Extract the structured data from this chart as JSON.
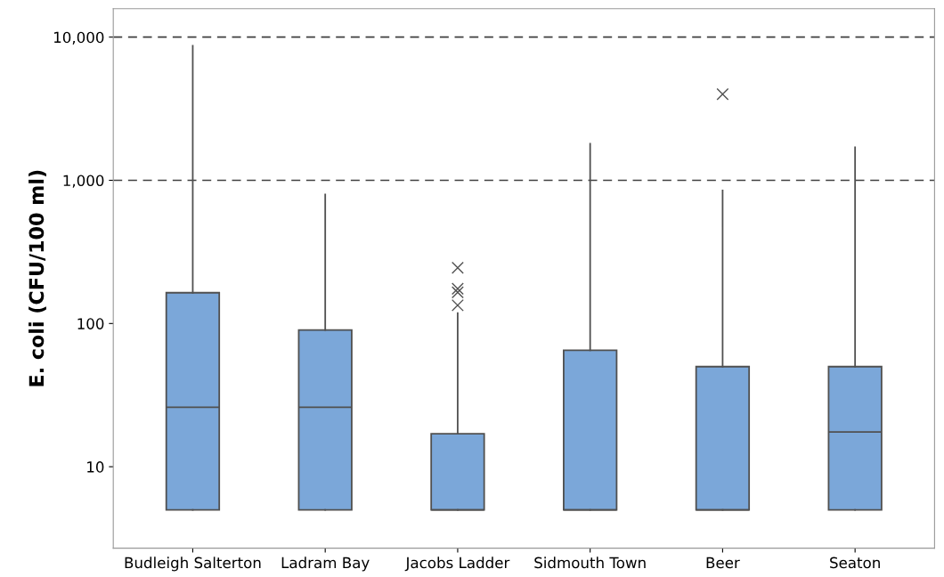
{
  "chart_data": {
    "type": "box",
    "ylabel": "E. coli (CFU/100 ml)",
    "log": "y",
    "categories": [
      "Budleigh Salterton",
      "Ladram Bay",
      "Jacobs Ladder",
      "Sidmouth Town",
      "Beer",
      "Seaton"
    ],
    "color": "#7ba7d9",
    "boxes": [
      {
        "low": 5,
        "q1": 5,
        "median": 26,
        "q3": 164,
        "high": 8700
      },
      {
        "low": 5,
        "q1": 5,
        "median": 26,
        "q3": 90,
        "high": 795
      },
      {
        "low": 5,
        "q1": 5,
        "median": 5,
        "q3": 17,
        "high": 118,
        "outliers": [
          245,
          175,
          165,
          134
        ]
      },
      {
        "low": 5,
        "q1": 5,
        "median": 5,
        "q3": 65,
        "high": 1800
      },
      {
        "low": 5,
        "q1": 5,
        "median": 5,
        "q3": 50,
        "high": 850,
        "outliers": [
          4000
        ]
      },
      {
        "low": 5,
        "q1": 5,
        "median": 17.5,
        "q3": 50,
        "high": 1700
      }
    ],
    "ylim": [
      2.7,
      15800
    ],
    "yticks": [
      {
        "value": 10,
        "label": "10"
      },
      {
        "value": 100,
        "label": "100"
      },
      {
        "value": 1000,
        "label": "1,000"
      },
      {
        "value": 10000,
        "label": "10,000"
      }
    ],
    "ref_lines": [
      {
        "axis": "y",
        "value": 1000,
        "line_style": "dashed",
        "color": "#404040"
      },
      {
        "axis": "y",
        "value": 10000,
        "line_style": "dashed",
        "color": "#404040"
      }
    ],
    "grid": false,
    "marker": "cross"
  }
}
